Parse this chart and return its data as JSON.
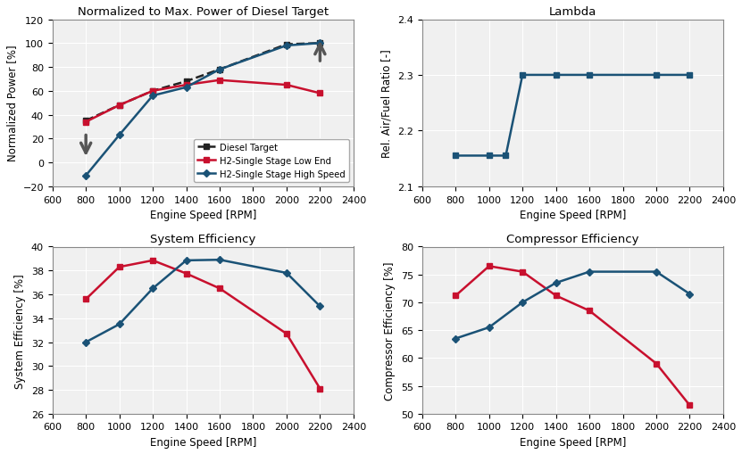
{
  "rpm": [
    800,
    1000,
    1200,
    1400,
    1600,
    2000,
    2200
  ],
  "power_diesel": [
    35,
    48,
    60,
    68,
    78,
    99,
    100
  ],
  "power_low": [
    34,
    48,
    60,
    65,
    69,
    65,
    58
  ],
  "power_high": [
    -11,
    23,
    56,
    63,
    78,
    98,
    100
  ],
  "lambda_rpm": [
    800,
    1000,
    1100,
    1200,
    1400,
    1600,
    2000,
    2200
  ],
  "lambda_vals": [
    2.155,
    2.155,
    2.155,
    2.3,
    2.3,
    2.3,
    2.3,
    2.3
  ],
  "syseff_rpm": [
    800,
    1000,
    1200,
    1400,
    1600,
    2000,
    2200
  ],
  "syseff_low": [
    35.6,
    38.3,
    38.85,
    37.75,
    36.5,
    32.7,
    28.1
  ],
  "syseff_high": [
    32.0,
    33.5,
    36.5,
    38.85,
    38.9,
    37.8,
    35.0
  ],
  "compeff_rpm": [
    800,
    1000,
    1200,
    1400,
    1600,
    2000,
    2200
  ],
  "compeff_low": [
    71.2,
    76.5,
    75.5,
    71.2,
    68.5,
    59.0,
    51.5
  ],
  "compeff_high": [
    63.5,
    65.5,
    70.0,
    73.5,
    75.5,
    75.5,
    71.5
  ],
  "color_diesel": "#222222",
  "color_low": "#c8102e",
  "color_high": "#1a5276",
  "title1": "Normalized to Max. Power of Diesel Target",
  "title2": "Lambda",
  "title3": "System Efficiency",
  "title4": "Compressor Efficiency",
  "ylabel1": "Normalized Power [%]",
  "ylabel2": "Rel. Air/Fuel Ratio [-]",
  "ylabel3": "System Efficiency [%]",
  "ylabel4": "Compressor Efficiency [%]",
  "xlabel": "Engine Speed [RPM]",
  "ylim1": [
    -20,
    120
  ],
  "ylim2": [
    2.1,
    2.4
  ],
  "ylim3": [
    26,
    40
  ],
  "ylim4": [
    50,
    80
  ],
  "xlim": [
    600,
    2400
  ],
  "xticks": [
    600,
    800,
    1000,
    1200,
    1400,
    1600,
    1800,
    2000,
    2200,
    2400
  ],
  "legend_diesel": "Diesel Target",
  "legend_low": "H2-Single Stage Low End",
  "legend_high": "H2-Single Stage High Speed",
  "bg_color": "#f0f0f0",
  "grid_color": "#ffffff",
  "grid_lw": 0.8
}
